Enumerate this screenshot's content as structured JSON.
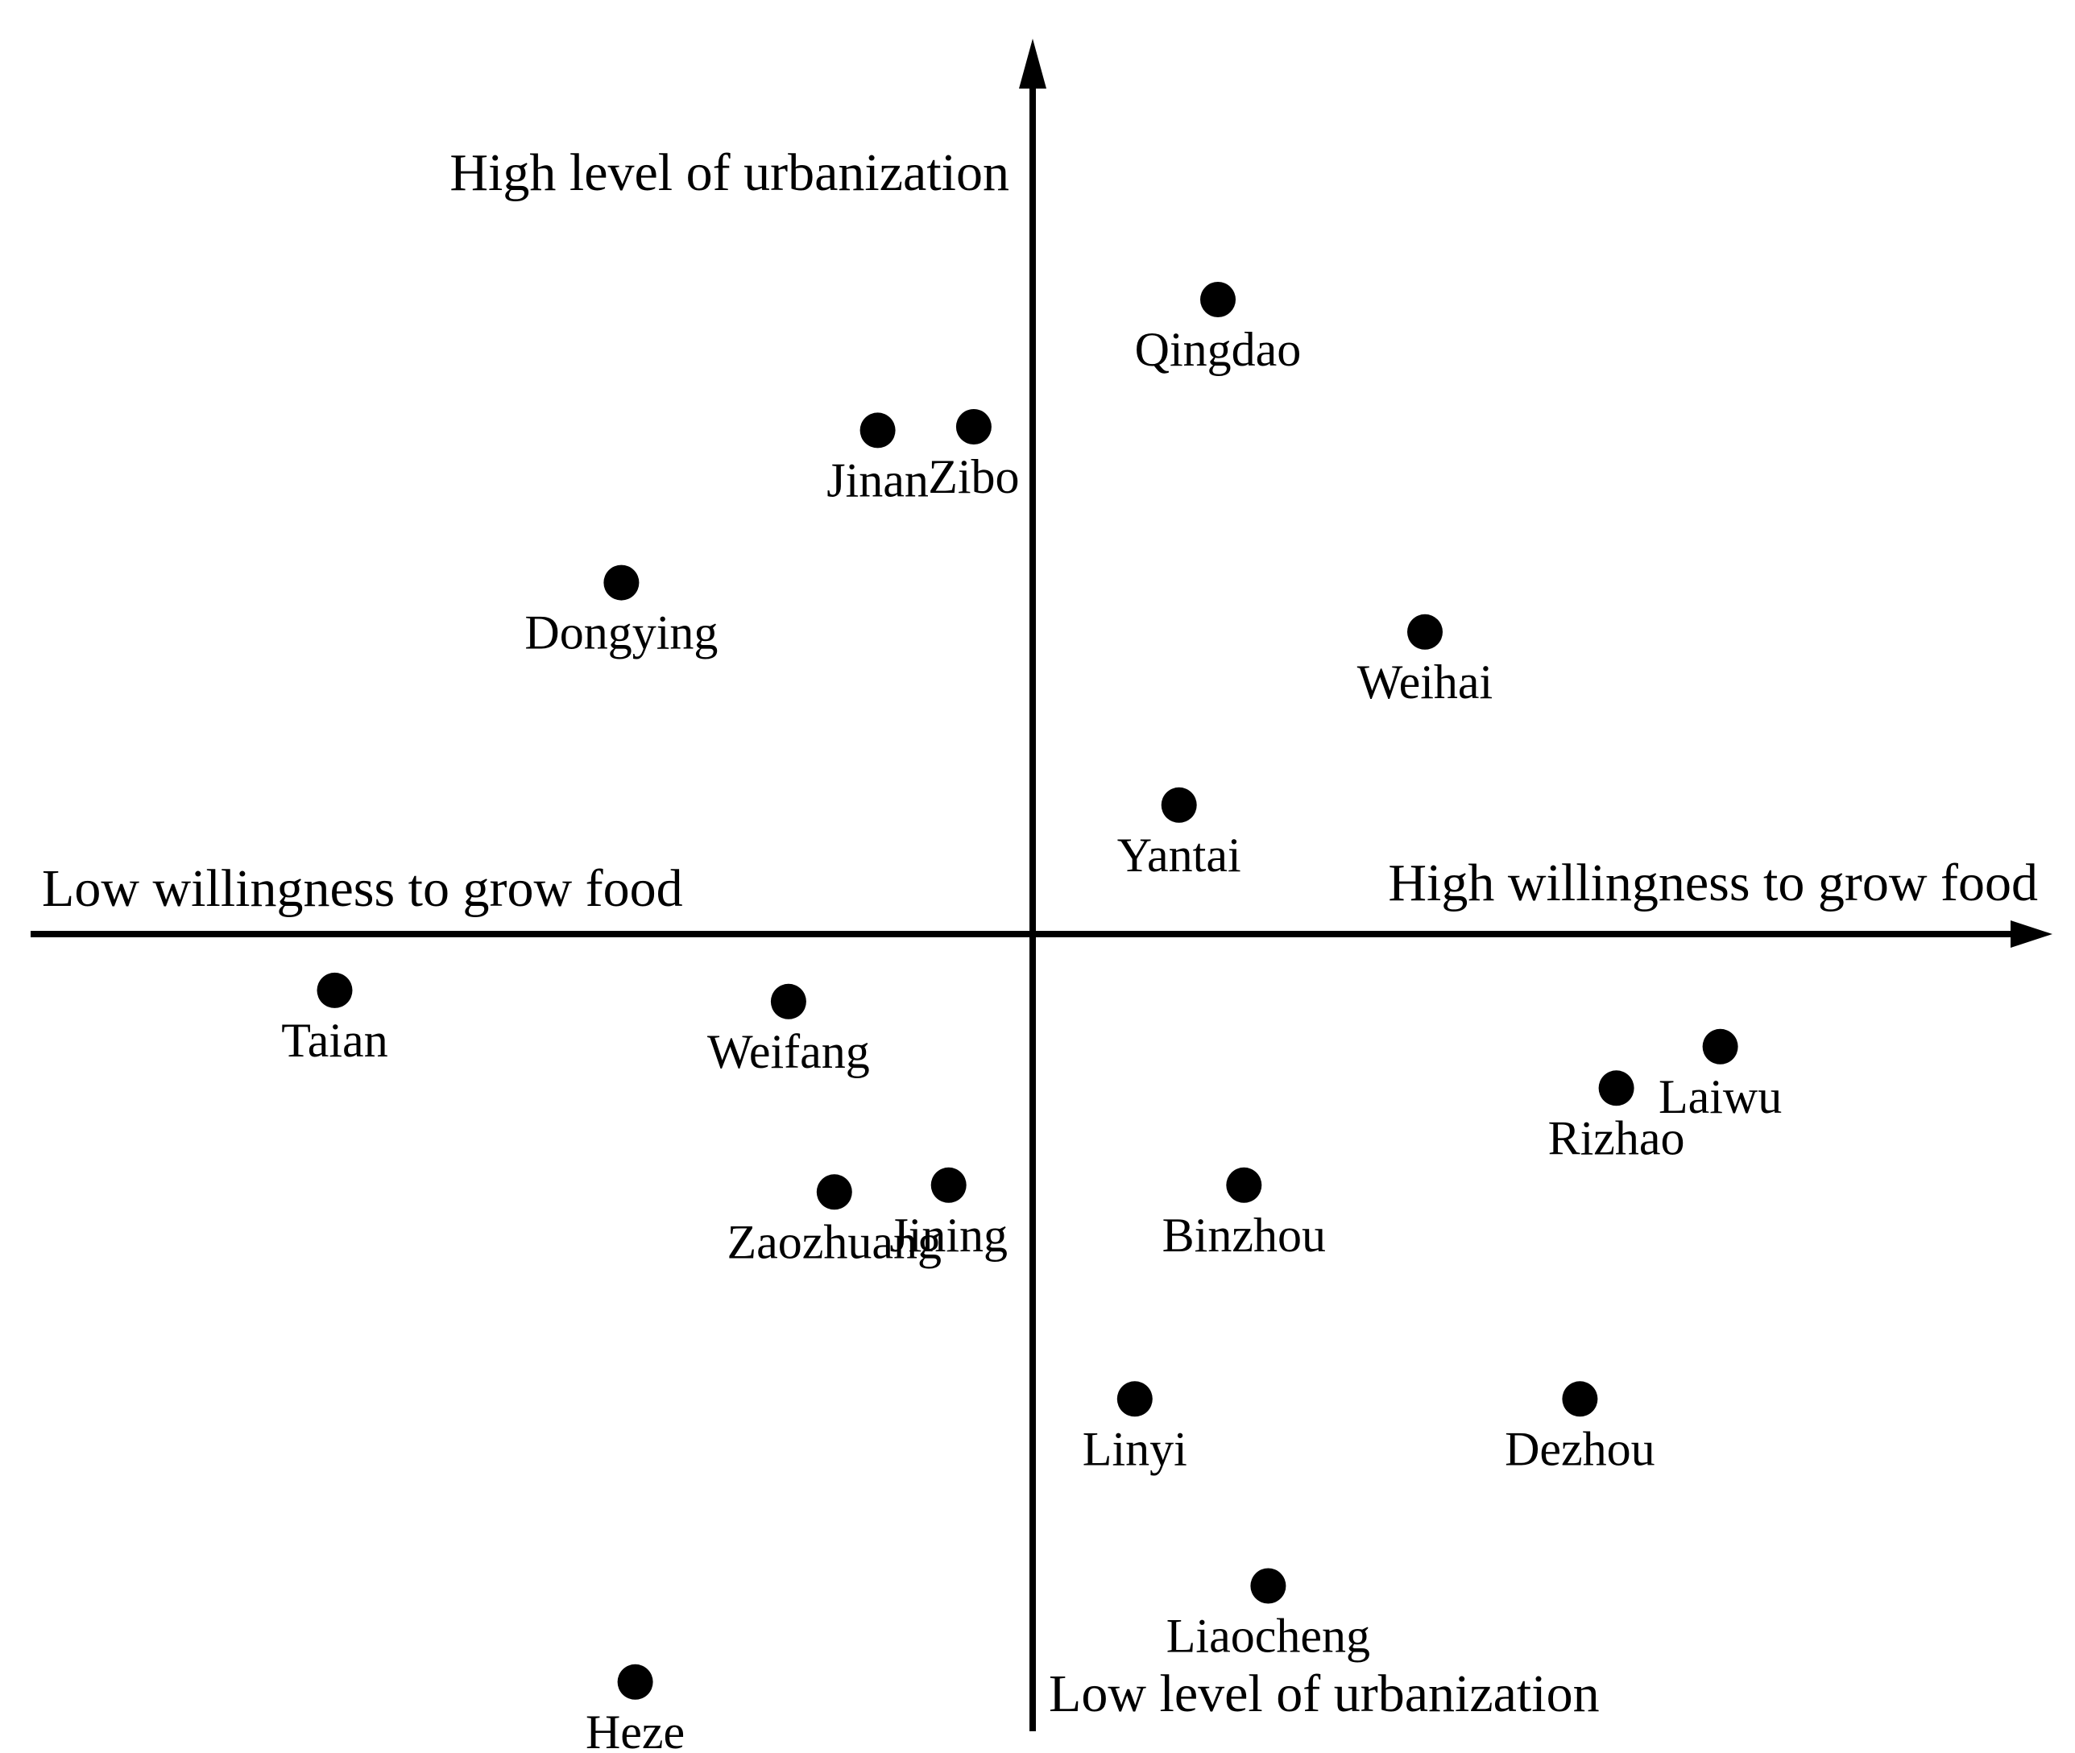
{
  "chart_data": {
    "type": "scatter",
    "title": "",
    "xlabel_positive": "High willingness to grow food",
    "xlabel_negative": "Low willingness to grow food",
    "ylabel_positive": "High level of urbanization",
    "ylabel_negative": "Low level of urbanization",
    "xlim": [
      -10,
      10
    ],
    "ylim": [
      -10,
      10
    ],
    "grid": false,
    "legend": "none",
    "points": [
      {
        "label": "Qingdao",
        "x": 2.14,
        "y": 7.33
      },
      {
        "label": "Jinan",
        "x": -1.79,
        "y": 5.82
      },
      {
        "label": "Zibo",
        "x": -0.68,
        "y": 5.86
      },
      {
        "label": "Dongying",
        "x": -4.75,
        "y": 4.06
      },
      {
        "label": "Weihai",
        "x": 4.53,
        "y": 3.49
      },
      {
        "label": "Yantai",
        "x": 1.69,
        "y": 1.49
      },
      {
        "label": "Taian",
        "x": -8.06,
        "y": -0.65
      },
      {
        "label": "Weifang",
        "x": -2.82,
        "y": -0.78
      },
      {
        "label": "Zaozhuang",
        "x": -2.29,
        "y": -2.98
      },
      {
        "label": "Jining",
        "x": -0.97,
        "y": -2.9
      },
      {
        "label": "Binzhou",
        "x": 2.44,
        "y": -2.9
      },
      {
        "label": "Rizhao",
        "x": 6.74,
        "y": -1.78
      },
      {
        "label": "Laiwu",
        "x": 7.94,
        "y": -1.3
      },
      {
        "label": "Linyi",
        "x": 1.18,
        "y": -5.37
      },
      {
        "label": "Dezhou",
        "x": 6.32,
        "y": -5.37
      },
      {
        "label": "Liaocheng",
        "x": 2.72,
        "y": -7.53
      },
      {
        "label": "Heze",
        "x": -4.59,
        "y": -8.64
      }
    ]
  }
}
